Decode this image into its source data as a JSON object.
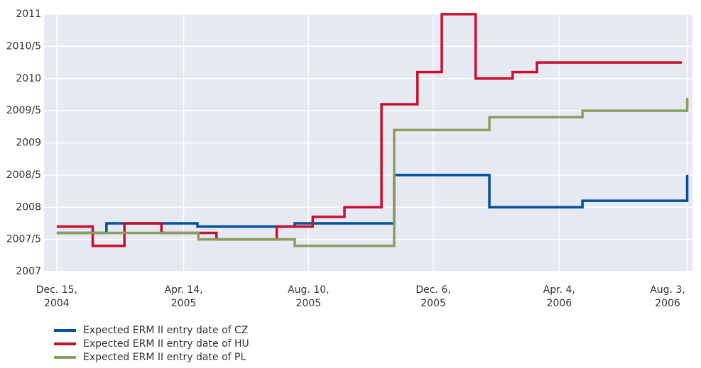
{
  "chart_data": {
    "type": "step-line",
    "xlim": [
      "2004-12-03",
      "2006-08-08"
    ],
    "xticks": [
      {
        "value": "2004-12-15",
        "label": "Dec. 15,\n2004"
      },
      {
        "value": "2005-04-14",
        "label": "Apr. 14,\n2005"
      },
      {
        "value": "2005-08-10",
        "label": "Aug. 10,\n2005"
      },
      {
        "value": "2005-12-06",
        "label": "Dec. 6,\n2005"
      },
      {
        "value": "2006-04-04",
        "label": "Apr. 4,\n2006"
      },
      {
        "value": "2006-08-03",
        "label": "Aug. 3,\n2006"
      }
    ],
    "ylim": [
      2007,
      2011
    ],
    "yticks": [
      2007,
      {
        "value": 2007.5,
        "label": "2007/5"
      },
      2008,
      {
        "value": 2008.5,
        "label": "2008/5"
      },
      2009,
      {
        "value": 2009.5,
        "label": "2009/5"
      },
      2010,
      {
        "value": 2010.5,
        "label": "2010/5"
      },
      2011
    ],
    "grid": true,
    "legend": "bottom-left",
    "series": [
      {
        "name": "Expected ERM II entry date of CZ",
        "color": "#00519a",
        "x": [
          "2004-12-15",
          "2005-01-31",
          "2005-04-27",
          "2005-07-28",
          "2005-10-30",
          "2006-01-28",
          "2006-04-26",
          "2006-07-25",
          "2006-08-03"
        ],
        "values": [
          2007.6,
          2007.75,
          2007.7,
          2007.75,
          2008.5,
          2008.0,
          2008.1,
          2008.1,
          2008.5
        ]
      },
      {
        "name": "Expected ERM II entry date of HU",
        "color": "#c8102e",
        "x": [
          "2004-12-15",
          "2005-01-18",
          "2005-02-17",
          "2005-03-24",
          "2005-05-15",
          "2005-07-11",
          "2005-08-14",
          "2005-09-13",
          "2005-10-18",
          "2005-11-21",
          "2005-12-14",
          "2006-01-15",
          "2006-02-19",
          "2006-03-14",
          "2006-07-29"
        ],
        "values": [
          2007.7,
          2007.4,
          2007.75,
          2007.6,
          2007.5,
          2007.7,
          2007.85,
          2008.0,
          2009.6,
          2010.1,
          2011.0,
          2010.0,
          2010.1,
          2010.25,
          2010.25
        ]
      },
      {
        "name": "Expected ERM II entry date of PL",
        "color": "#87a05a",
        "x": [
          "2004-12-15",
          "2005-04-28",
          "2005-07-28",
          "2005-10-30",
          "2006-01-28",
          "2006-04-26",
          "2006-07-25",
          "2006-08-03"
        ],
        "values": [
          2007.6,
          2007.5,
          2007.4,
          2009.2,
          2009.4,
          2009.5,
          2009.5,
          2009.7
        ]
      }
    ]
  }
}
